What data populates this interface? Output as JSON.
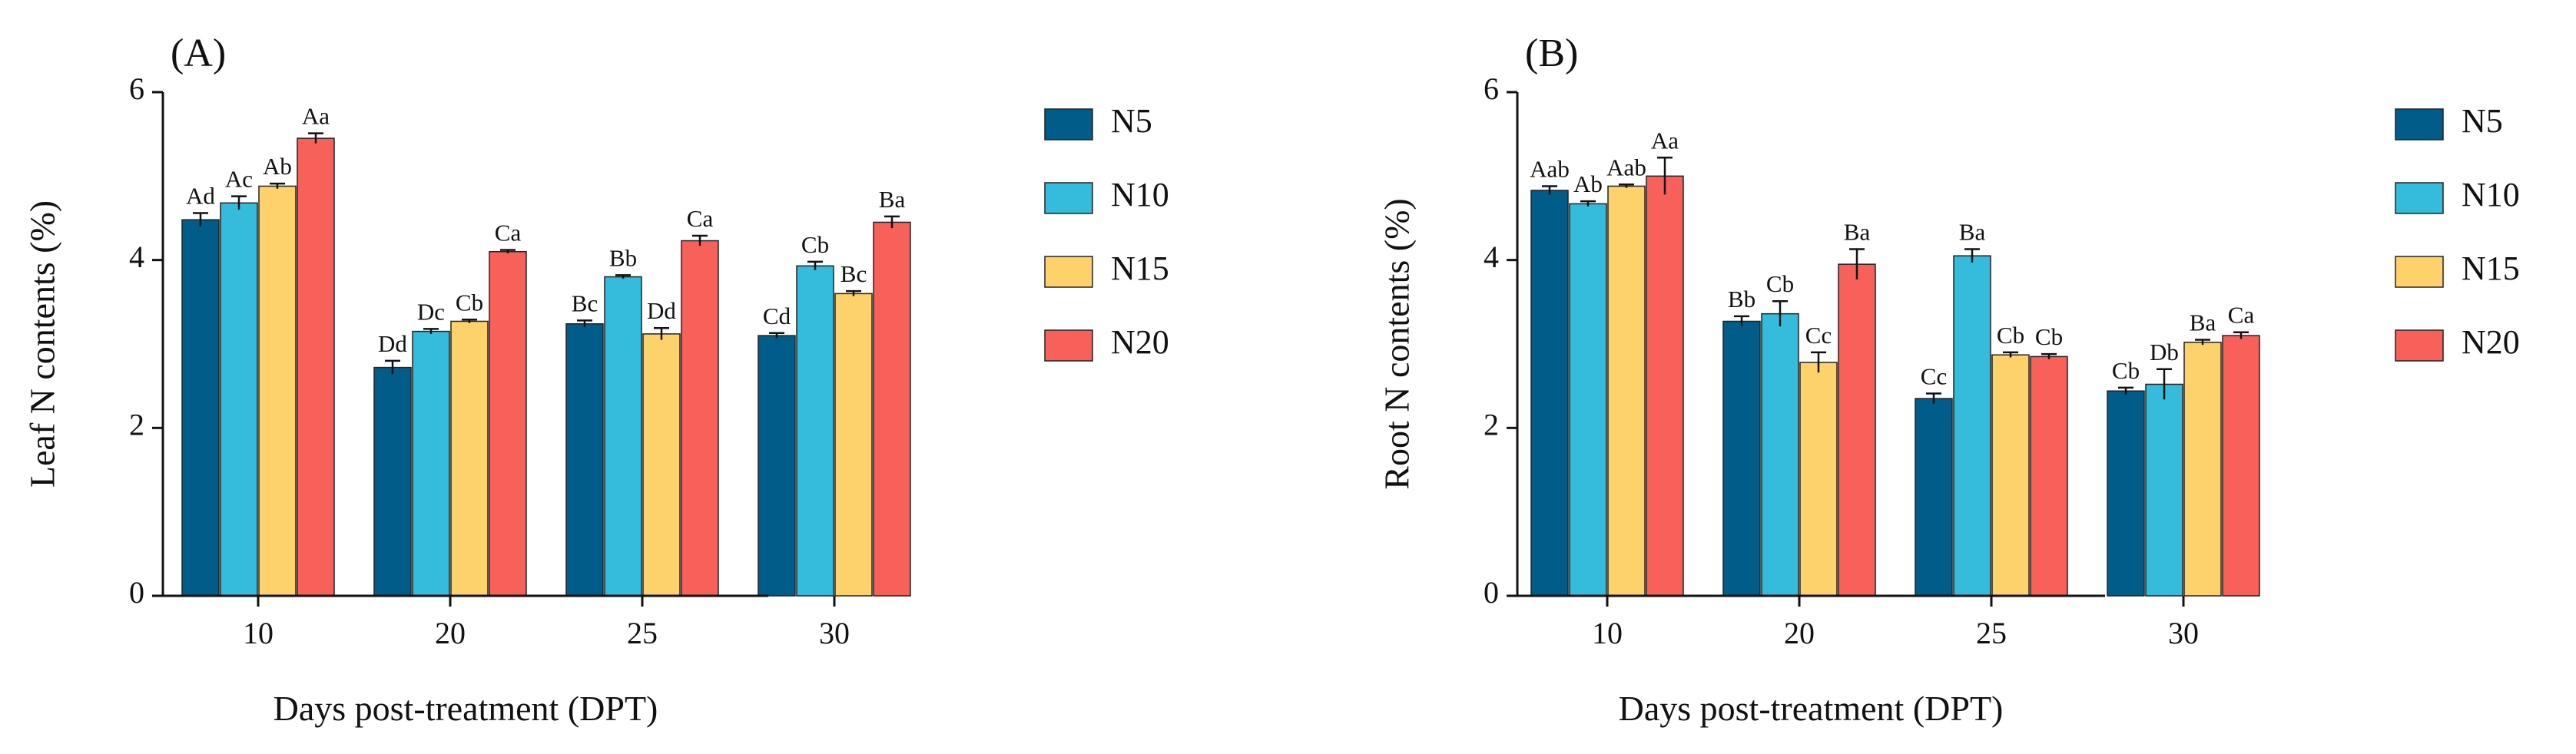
{
  "chart_data": [
    {
      "type": "bar",
      "panel_label": "(A)",
      "ylabel": "Leaf N contents (%)",
      "xlabel": "Days post-treatment (DPT)",
      "categories": [
        "10",
        "20",
        "25",
        "30"
      ],
      "yticks": [
        "0",
        "2",
        "4",
        "6"
      ],
      "ylim": [
        0,
        6
      ],
      "legend_position": "right",
      "series": [
        {
          "name": "N5",
          "color": "#005D8A",
          "values": [
            4.48,
            2.72,
            3.24,
            3.1
          ],
          "errors": [
            0.08,
            0.08,
            0.04,
            0.03
          ],
          "labels": [
            "Ad",
            "Dd",
            "Bc",
            "Cd"
          ]
        },
        {
          "name": "N10",
          "color": "#35BBDB",
          "values": [
            4.68,
            3.15,
            3.8,
            3.93
          ],
          "errors": [
            0.08,
            0.03,
            0.02,
            0.05
          ],
          "labels": [
            "Ac",
            "Dc",
            "Bb",
            "Cb"
          ]
        },
        {
          "name": "N15",
          "color": "#FDD26B",
          "values": [
            4.88,
            3.27,
            3.12,
            3.6
          ],
          "errors": [
            0.03,
            0.02,
            0.07,
            0.03
          ],
          "labels": [
            "Ab",
            "Cb",
            "Dd",
            "Bc"
          ]
        },
        {
          "name": "N20",
          "color": "#F8605A",
          "values": [
            5.45,
            4.1,
            4.23,
            4.45
          ],
          "errors": [
            0.06,
            0.02,
            0.06,
            0.07
          ],
          "labels": [
            "Aa",
            "Ca",
            "Ca",
            "Ba"
          ]
        }
      ]
    },
    {
      "type": "bar",
      "panel_label": "(B)",
      "ylabel": "Root N contents (%)",
      "xlabel": "Days post-treatment (DPT)",
      "categories": [
        "10",
        "20",
        "25",
        "30"
      ],
      "yticks": [
        "0",
        "2",
        "4",
        "6"
      ],
      "ylim": [
        0,
        6
      ],
      "legend_position": "right",
      "series": [
        {
          "name": "N5",
          "color": "#005D8A",
          "values": [
            4.83,
            3.27,
            2.35,
            2.44
          ],
          "errors": [
            0.05,
            0.06,
            0.06,
            0.04
          ],
          "labels": [
            "Aab",
            "Bb",
            "Cc",
            "Cb"
          ]
        },
        {
          "name": "N10",
          "color": "#35BBDB",
          "values": [
            4.67,
            3.36,
            4.05,
            2.52
          ],
          "errors": [
            0.03,
            0.15,
            0.08,
            0.18
          ],
          "labels": [
            "Ab",
            "Cb",
            "Ba",
            "Db"
          ]
        },
        {
          "name": "N15",
          "color": "#FDD26B",
          "values": [
            4.88,
            2.78,
            2.87,
            3.02
          ],
          "errors": [
            0.02,
            0.12,
            0.03,
            0.03
          ],
          "labels": [
            "Aab",
            "Cc",
            "Cb",
            "Ba"
          ]
        },
        {
          "name": "N20",
          "color": "#F8605A",
          "values": [
            5.0,
            3.95,
            2.85,
            3.1
          ],
          "errors": [
            0.22,
            0.18,
            0.03,
            0.04
          ],
          "labels": [
            "Aa",
            "Ba",
            "Cb",
            "Ca"
          ]
        }
      ]
    }
  ]
}
